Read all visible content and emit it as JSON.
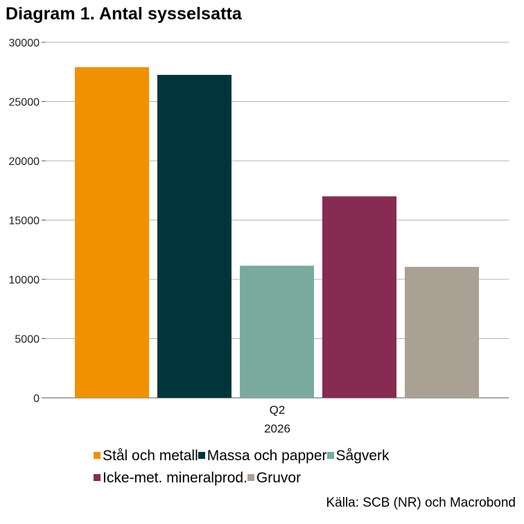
{
  "chart_data": {
    "type": "bar",
    "title": "Diagram 1. Antal sysselsatta",
    "categories": [
      "Q2"
    ],
    "category_sublabel": "2026",
    "series": [
      {
        "name": "Stål och metall",
        "color": "#F29100",
        "values": [
          27900
        ]
      },
      {
        "name": "Massa och papper",
        "color": "#00363B",
        "values": [
          27250
        ]
      },
      {
        "name": "Sågverk",
        "color": "#7AAA9E",
        "values": [
          11150
        ]
      },
      {
        "name": "Icke-met. mineralprod.",
        "color": "#862B51",
        "values": [
          17000
        ]
      },
      {
        "name": "Gruvor",
        "color": "#AAA194",
        "values": [
          11050
        ]
      }
    ],
    "yticks": [
      0,
      5000,
      10000,
      15000,
      20000,
      25000,
      30000
    ],
    "ylim": [
      0,
      30000
    ],
    "grid": true,
    "legend_position": "bottom",
    "source": "Källa: SCB (NR) och Macrobond"
  }
}
